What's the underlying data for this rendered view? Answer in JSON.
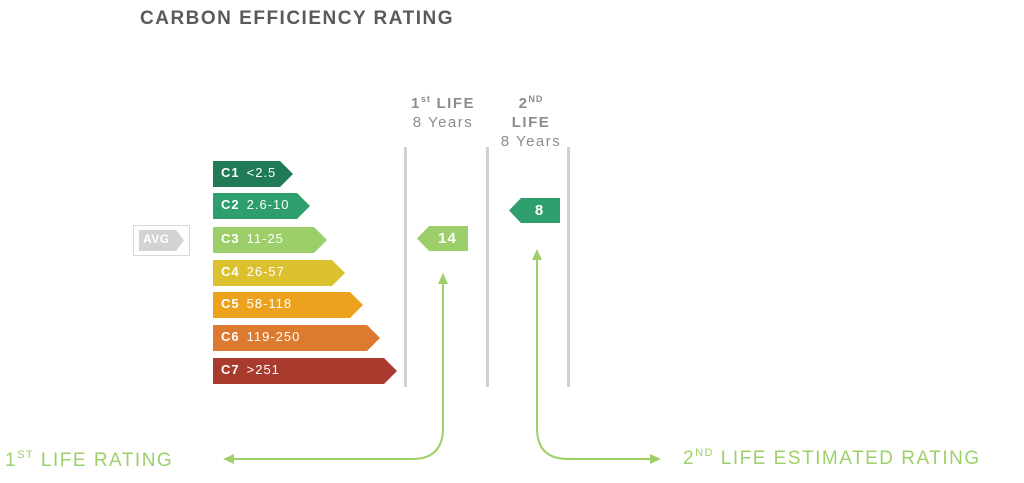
{
  "title": "CARBON EFFICIENCY RATING",
  "columns": [
    {
      "line1_num": "1",
      "line1_sup": "st",
      "line1_word": "LIFE",
      "line2": "8 Years"
    },
    {
      "line1_num": "2",
      "line1_sup": "ND",
      "line1_word": "LIFE",
      "line2": "8 Years"
    }
  ],
  "ratings": [
    {
      "code": "C1",
      "range": "<2.5",
      "color": "#1f7a55"
    },
    {
      "code": "C2",
      "range": "2.6-10",
      "color": "#2e9e6e"
    },
    {
      "code": "C3",
      "range": "11-25",
      "color": "#9ccf6a"
    },
    {
      "code": "C4",
      "range": "26-57",
      "color": "#dcc12e"
    },
    {
      "code": "C5",
      "range": "58-118",
      "color": "#eda21e"
    },
    {
      "code": "C6",
      "range": "119-250",
      "color": "#dc7a2f"
    },
    {
      "code": "C7",
      "range": ">251",
      "color": "#a83b2e"
    }
  ],
  "avg": {
    "label": "AVG",
    "color": "#d3d3d3"
  },
  "first_life_marker": {
    "value": "14",
    "color": "#9ccf6a"
  },
  "second_life_marker": {
    "value": "8",
    "color": "#2e9e6e"
  },
  "bottom_left": {
    "num": "1",
    "sup": "ST",
    "text": "LIFE RATING"
  },
  "bottom_right": {
    "num": "2",
    "sup": "ND",
    "text": "LIFE ESTIMATED RATING"
  },
  "accent_green": "#9ed06a"
}
